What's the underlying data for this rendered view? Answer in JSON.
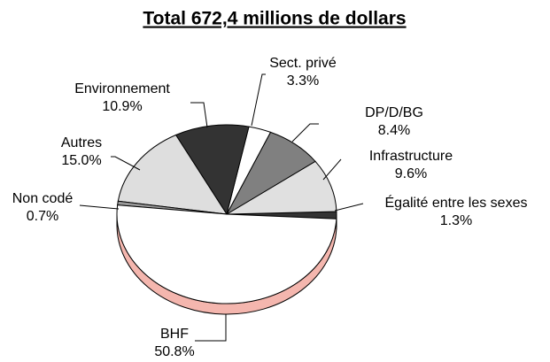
{
  "chart_data": {
    "type": "pie",
    "title": "Total 672,4 millions de dollars",
    "categories": [
      "Égalité entre les sexes",
      "Infrastructure",
      "DP/D/BG",
      "Sect. privé",
      "Environnement",
      "Autres",
      "Non codé",
      "BHF"
    ],
    "values": [
      1.3,
      9.6,
      8.4,
      3.3,
      10.9,
      15.0,
      0.7,
      50.8
    ],
    "value_labels": [
      "1.3%",
      "9.6%",
      "8.4%",
      "3.3%",
      "10.9%",
      "15.0%",
      "0.7%",
      "50.8%"
    ],
    "colors": [
      "#333333",
      "#e0e0e0",
      "#808080",
      "#ffffff",
      "#333333",
      "#dedede",
      "#999999",
      "#ffffff"
    ]
  }
}
